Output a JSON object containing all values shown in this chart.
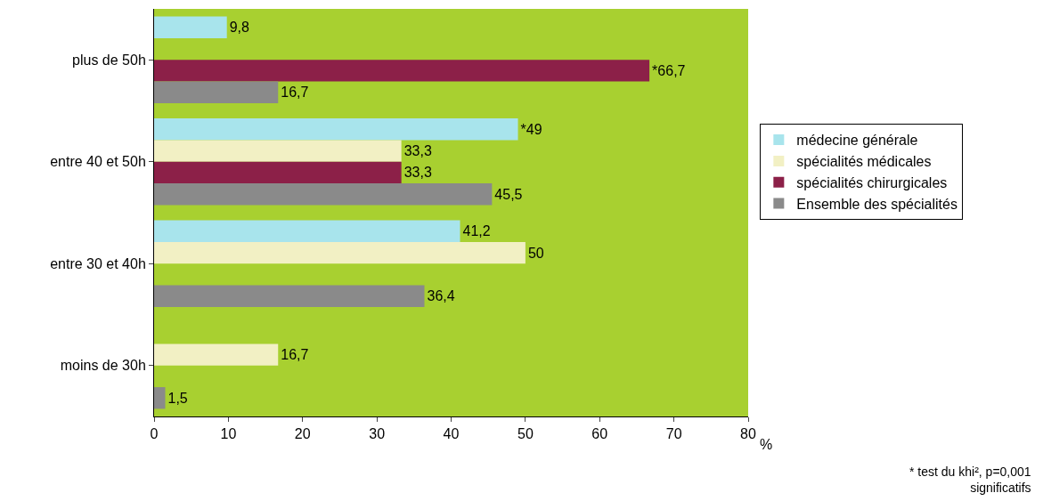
{
  "chart_data": {
    "type": "bar",
    "orientation": "horizontal",
    "xlabel": "%",
    "categories": [
      "plus de 50h",
      "entre 40 et 50h",
      "entre 30 et 40h",
      "moins de 30h"
    ],
    "series": [
      {
        "name": "médecine générale",
        "color": "#a8e4ec",
        "values": [
          9.8,
          49,
          41.2,
          null
        ],
        "value_labels": [
          "9,8",
          "*49",
          "41,2",
          null
        ]
      },
      {
        "name": "spécialités médicales",
        "color": "#f2f0c4",
        "values": [
          null,
          33.3,
          50,
          16.7
        ],
        "value_labels": [
          null,
          "33,3",
          "50",
          "16,7"
        ]
      },
      {
        "name": "spécialités chirurgicales",
        "color": "#8c2048",
        "values": [
          66.7,
          33.3,
          null,
          null
        ],
        "value_labels": [
          "*66,7",
          "33,3",
          null,
          null
        ]
      },
      {
        "name": "Ensemble des spécialités",
        "color": "#8a8a8a",
        "values": [
          16.7,
          45.5,
          36.4,
          1.5
        ],
        "value_labels": [
          "16,7",
          "45,5",
          "36,4",
          "1,5"
        ]
      }
    ],
    "xlim": [
      0,
      80
    ],
    "xticks": [
      0,
      10,
      20,
      30,
      40,
      50,
      60,
      70,
      80
    ],
    "grid": false,
    "legend": "right",
    "annotations": [
      "* test du khi², p=0,001 significatifs"
    ]
  }
}
